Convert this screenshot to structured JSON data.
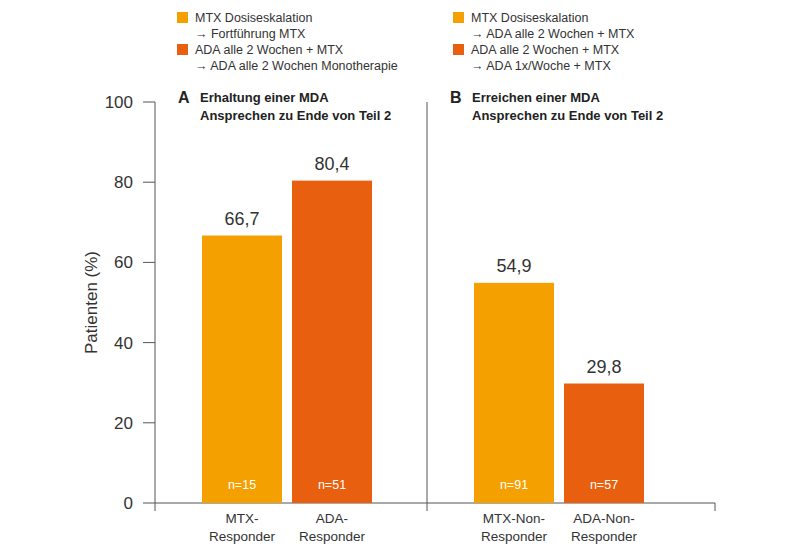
{
  "chart_data": [
    {
      "type": "bar",
      "label": "A",
      "title": "Erhaltung einer MDA\nAnsprechen zu Ende von Teil 2",
      "ylabel": "Patienten (%)",
      "categories": [
        "MTX-\nResponder",
        "ADA-\nResponder"
      ],
      "series": [
        {
          "name": "MTX Dosiseskalation\n→ Fortführung MTX",
          "color": "#f4a000",
          "values": [
            66.7,
            null
          ],
          "value_labels": [
            "66,7",
            null
          ]
        },
        {
          "name": "ADA alle 2 Wochen + MTX\n→ ADA alle 2 Wochen Monotherapie",
          "color": "#e8600f",
          "values": [
            null,
            80.4
          ],
          "value_labels": [
            null,
            "80,4"
          ]
        }
      ],
      "annotations": [
        "n=15",
        "n=51"
      ],
      "ylim": [
        0,
        100
      ],
      "yticks": [
        0,
        20,
        40,
        60,
        80,
        100
      ],
      "grid": false,
      "data_labels": true,
      "legend": "top"
    },
    {
      "type": "bar",
      "label": "B",
      "title": "Erreichen einer MDA\nAnsprechen zu Ende von Teil 2",
      "categories": [
        "MTX-Non-\nResponder",
        "ADA-Non-\nResponder"
      ],
      "series": [
        {
          "name": "MTX Dosiseskalation\n→ ADA alle 2 Wochen + MTX",
          "color": "#f4a000",
          "values": [
            54.9,
            null
          ],
          "value_labels": [
            "54,9",
            null
          ]
        },
        {
          "name": "ADA alle 2 Wochen + MTX\n→ ADA 1x/Woche + MTX",
          "color": "#e8600f",
          "values": [
            null,
            29.8
          ],
          "value_labels": [
            null,
            "29,8"
          ]
        }
      ],
      "annotations": [
        "n=91",
        "n=57"
      ],
      "ylim": [
        0,
        100
      ],
      "grid": false,
      "data_labels": true,
      "legend": "top",
      "tick_labels": false
    }
  ]
}
